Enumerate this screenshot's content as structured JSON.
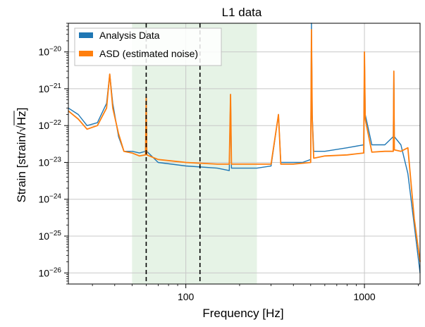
{
  "chart_data": {
    "type": "line",
    "title": "L1 data",
    "xlabel": "Frequency [Hz]",
    "ylabel_parts": {
      "prefix": "Strain [strain/",
      "sqrt": "√",
      "radicand": "Hz",
      "suffix": "]"
    },
    "xscale": "log",
    "yscale": "log",
    "xlim": [
      22,
      2048
    ],
    "ylim": [
      5e-27,
      6e-20
    ],
    "grid": true,
    "legend_position": "upper-left",
    "x_ticks": [
      {
        "value": 100,
        "label": "100"
      },
      {
        "value": 1000,
        "label": "1000"
      }
    ],
    "y_ticks": [
      {
        "exp": -20,
        "base": "10",
        "exp_label": "−20"
      },
      {
        "exp": -21,
        "base": "10",
        "exp_label": "−21"
      },
      {
        "exp": -22,
        "base": "10",
        "exp_label": "−22"
      },
      {
        "exp": -23,
        "base": "10",
        "exp_label": "−23"
      },
      {
        "exp": -24,
        "base": "10",
        "exp_label": "−24"
      },
      {
        "exp": -25,
        "base": "10",
        "exp_label": "−25"
      },
      {
        "exp": -26,
        "base": "10",
        "exp_label": "−26"
      }
    ],
    "shaded_band": {
      "x": [
        50,
        250
      ],
      "color": "#e6f3e6"
    },
    "vertical_lines": [
      {
        "x": 60,
        "style": "dashed",
        "color": "#000000"
      },
      {
        "x": 120,
        "style": "dashed",
        "color": "#000000"
      }
    ],
    "series": [
      {
        "name": "Analysis Data",
        "color": "#1f77b4",
        "points": [
          [
            22,
            3e-22
          ],
          [
            25,
            2e-22
          ],
          [
            28,
            1e-22
          ],
          [
            32,
            1.2e-22
          ],
          [
            36,
            4e-22
          ],
          [
            37.5,
            2.5e-21
          ],
          [
            39,
            4e-22
          ],
          [
            42,
            5e-23
          ],
          [
            45,
            2e-23
          ],
          [
            50,
            2e-23
          ],
          [
            55,
            1.8e-23
          ],
          [
            59.5,
            2e-23
          ],
          [
            60,
            6e-22
          ],
          [
            60.5,
            2e-23
          ],
          [
            70,
            1e-23
          ],
          [
            100,
            8e-24
          ],
          [
            150,
            7e-24
          ],
          [
            175,
            6e-24
          ],
          [
            178,
            7e-22
          ],
          [
            180,
            7e-24
          ],
          [
            250,
            7e-24
          ],
          [
            300,
            8e-24
          ],
          [
            330,
            2e-22
          ],
          [
            340,
            1e-23
          ],
          [
            400,
            1e-23
          ],
          [
            450,
            1e-23
          ],
          [
            500,
            1.2e-23
          ],
          [
            505,
            6e-20
          ],
          [
            510,
            2e-22
          ],
          [
            520,
            2e-23
          ],
          [
            600,
            2e-23
          ],
          [
            800,
            2.5e-23
          ],
          [
            990,
            3e-23
          ],
          [
            1000,
            1e-20
          ],
          [
            1010,
            2e-22
          ],
          [
            1100,
            3e-23
          ],
          [
            1300,
            3e-23
          ],
          [
            1450,
            5e-23
          ],
          [
            1460,
            3e-21
          ],
          [
            1470,
            5e-23
          ],
          [
            1600,
            3e-23
          ],
          [
            1750,
            5e-24
          ],
          [
            1900,
            2e-25
          ],
          [
            2048,
            1e-26
          ]
        ]
      },
      {
        "name": "ASD (estimated noise)",
        "color": "#ff7f0e",
        "points": [
          [
            22,
            2.5e-22
          ],
          [
            25,
            1.5e-22
          ],
          [
            28,
            8e-23
          ],
          [
            32,
            1e-22
          ],
          [
            36,
            3e-22
          ],
          [
            37.5,
            2.5e-21
          ],
          [
            39,
            3e-22
          ],
          [
            42,
            6e-23
          ],
          [
            45,
            2e-23
          ],
          [
            50,
            1.8e-23
          ],
          [
            55,
            1.5e-23
          ],
          [
            59.5,
            1.6e-23
          ],
          [
            60,
            6e-22
          ],
          [
            60.5,
            1.6e-23
          ],
          [
            70,
            1.2e-23
          ],
          [
            100,
            1e-23
          ],
          [
            150,
            9e-24
          ],
          [
            175,
            9e-24
          ],
          [
            178,
            7e-22
          ],
          [
            180,
            9e-24
          ],
          [
            250,
            9e-24
          ],
          [
            300,
            9e-24
          ],
          [
            330,
            2e-22
          ],
          [
            340,
            9e-24
          ],
          [
            400,
            9e-24
          ],
          [
            450,
            9.5e-24
          ],
          [
            500,
            1e-23
          ],
          [
            505,
            4e-20
          ],
          [
            510,
            1.5e-22
          ],
          [
            520,
            1.3e-23
          ],
          [
            600,
            1.5e-23
          ],
          [
            800,
            1.6e-23
          ],
          [
            990,
            1.8e-23
          ],
          [
            1000,
            1e-20
          ],
          [
            1010,
            1.5e-22
          ],
          [
            1100,
            1.9e-23
          ],
          [
            1300,
            2e-23
          ],
          [
            1450,
            2e-23
          ],
          [
            1460,
            3e-21
          ],
          [
            1470,
            2.2e-23
          ],
          [
            1600,
            2e-23
          ],
          [
            1750,
            2.5e-23
          ],
          [
            1900,
            3e-25
          ],
          [
            2048,
            2e-26
          ]
        ]
      }
    ]
  }
}
